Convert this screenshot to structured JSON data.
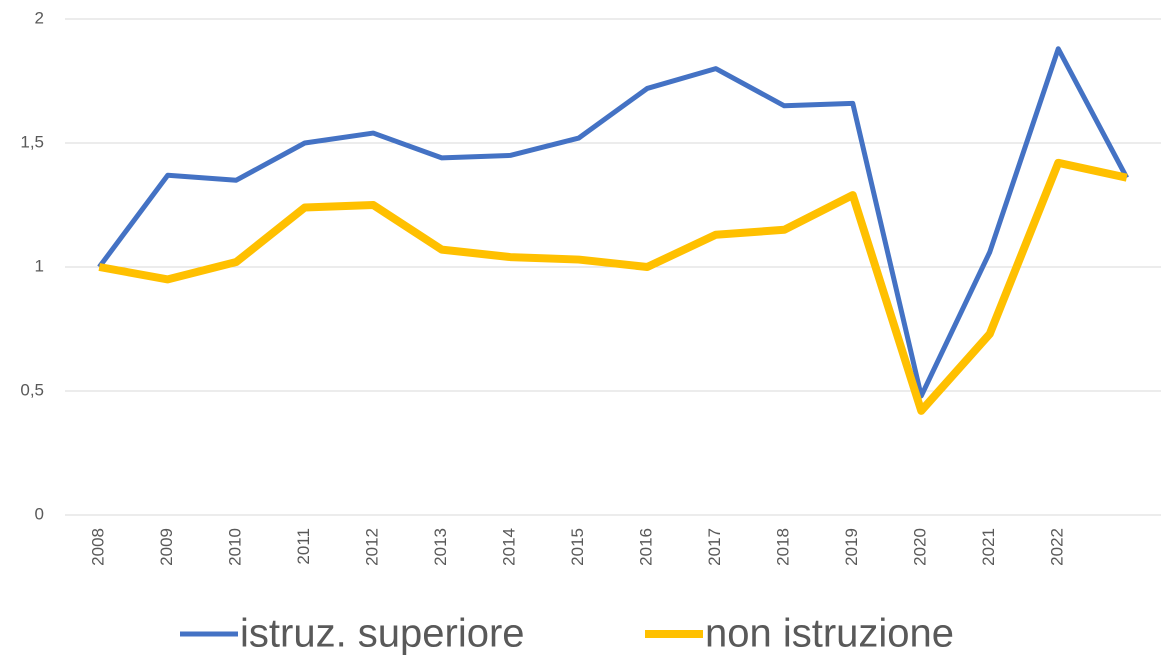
{
  "chart_data": {
    "type": "line",
    "categories": [
      "2008",
      "2009",
      "2010",
      "2011",
      "2012",
      "2013",
      "2014",
      "2015",
      "2016",
      "2017",
      "2018",
      "2019",
      "2020",
      "2021",
      "2022",
      null
    ],
    "series": [
      {
        "name": "istruz. superiore",
        "color": "#4472c4",
        "values": [
          1.0,
          1.37,
          1.35,
          1.5,
          1.54,
          1.44,
          1.45,
          1.52,
          1.72,
          1.8,
          1.65,
          1.66,
          0.48,
          1.06,
          1.88,
          1.36
        ]
      },
      {
        "name": "non istruzione",
        "color": "#ffc000",
        "values": [
          1.0,
          0.95,
          1.02,
          1.24,
          1.25,
          1.07,
          1.04,
          1.03,
          1.0,
          1.13,
          1.15,
          1.29,
          0.42,
          0.73,
          1.42,
          1.36
        ]
      }
    ],
    "ylim": [
      0,
      2
    ],
    "yticks": [
      0,
      {
        "value": 0.5,
        "label": "0,5"
      },
      1,
      {
        "value": 1.5,
        "label": "1,5"
      },
      2
    ],
    "grid": true,
    "legend": "bottom"
  }
}
